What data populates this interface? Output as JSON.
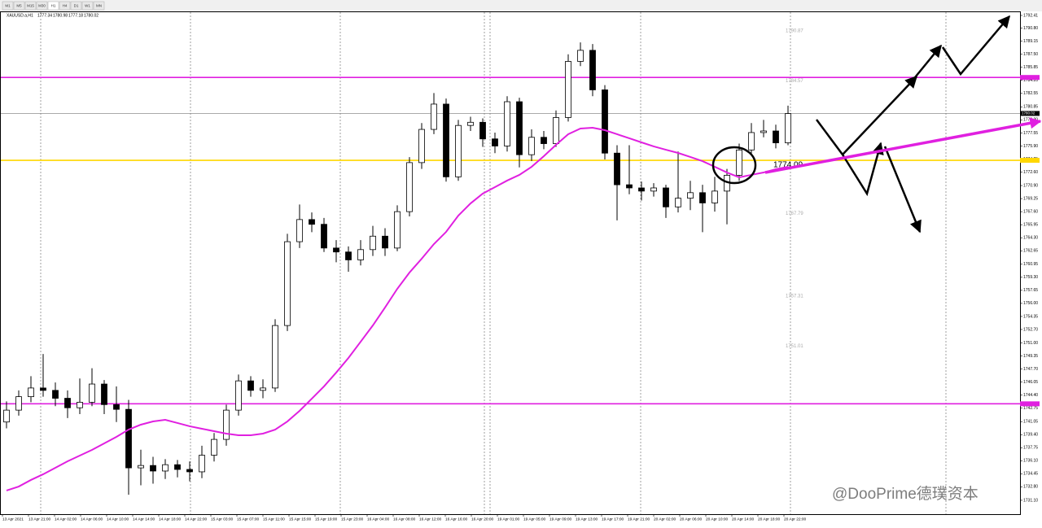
{
  "toolbar": [
    "M1",
    "M5",
    "M15",
    "M30",
    "H1",
    "H4",
    "D1",
    "W1",
    "MN"
  ],
  "chart_data": {
    "type": "candlestick",
    "symbol": "XAUUSD.a,H1",
    "quote": [
      1777.34,
      1780.98,
      1777.18,
      1780.02
    ],
    "up_color": "#ffffff",
    "down_color": "#000000",
    "open": [
      1741.0,
      1742.5,
      1744.2,
      1745.3,
      1745.0,
      1744.0,
      1742.8,
      1743.5,
      1745.8,
      1743.2,
      1742.6,
      1735.2,
      1735.5,
      1734.8,
      1735.6,
      1735.0,
      1734.7,
      1736.8,
      1738.8,
      1742.5,
      1746.2,
      1745.0,
      1745.3,
      1753.2,
      1763.8,
      1766.6,
      1766.0,
      1763.0,
      1762.5,
      1761.5,
      1762.8,
      1764.5,
      1763.0,
      1767.6,
      1773.8,
      1778.0,
      1781.2,
      1772.0,
      1778.5,
      1778.9,
      1776.8,
      1775.9,
      1781.5,
      1774.8,
      1777.0,
      1776.2,
      1779.5,
      1786.6,
      1788.0,
      1783.0,
      1775.0,
      1771.0,
      1770.6,
      1770.2,
      1770.6,
      1768.2,
      1769.3,
      1770.0,
      1768.7,
      1770.2,
      1772.2,
      1775.4,
      1777.6,
      1777.8,
      1776.3
    ],
    "high": [
      1743.6,
      1745.0,
      1746.8,
      1749.6,
      1746.0,
      1745.0,
      1746.5,
      1747.8,
      1746.3,
      1745.5,
      1743.8,
      1737.5,
      1736.6,
      1736.3,
      1736.2,
      1736.0,
      1738.0,
      1739.6,
      1743.2,
      1747.0,
      1746.8,
      1746.4,
      1754.0,
      1764.8,
      1768.5,
      1767.5,
      1766.8,
      1764.0,
      1763.2,
      1764.0,
      1765.8,
      1765.5,
      1768.4,
      1774.5,
      1778.8,
      1782.6,
      1781.9,
      1779.2,
      1779.6,
      1779.4,
      1777.6,
      1782.2,
      1782.0,
      1778.0,
      1777.8,
      1780.4,
      1787.5,
      1789.0,
      1788.8,
      1783.6,
      1776.0,
      1776.0,
      1771.4,
      1771.2,
      1771.0,
      1775.2,
      1771.5,
      1771.0,
      1772.0,
      1773.0,
      1776.2,
      1778.8,
      1779.2,
      1778.6,
      1781.0
    ],
    "low": [
      1740.2,
      1741.8,
      1743.5,
      1744.2,
      1743.0,
      1741.5,
      1742.0,
      1743.0,
      1742.0,
      1741.0,
      1731.8,
      1733.0,
      1733.2,
      1733.8,
      1734.0,
      1733.5,
      1733.9,
      1736.0,
      1738.0,
      1741.8,
      1744.2,
      1744.0,
      1744.8,
      1752.5,
      1763.0,
      1765.0,
      1762.5,
      1761.2,
      1760.0,
      1760.8,
      1762.0,
      1762.0,
      1762.6,
      1767.0,
      1773.0,
      1777.4,
      1771.4,
      1771.5,
      1777.8,
      1775.8,
      1775.0,
      1775.2,
      1773.2,
      1774.0,
      1775.5,
      1775.8,
      1779.0,
      1786.0,
      1782.2,
      1774.2,
      1766.5,
      1769.8,
      1769.0,
      1769.5,
      1766.8,
      1767.5,
      1767.8,
      1765.0,
      1767.6,
      1766.0,
      1771.5,
      1774.8,
      1777.0,
      1775.6,
      1776.0
    ],
    "close": [
      1742.5,
      1744.2,
      1745.3,
      1745.0,
      1744.0,
      1742.8,
      1743.5,
      1745.8,
      1743.2,
      1742.6,
      1735.2,
      1735.5,
      1734.8,
      1735.6,
      1735.0,
      1734.7,
      1736.8,
      1738.8,
      1742.5,
      1746.2,
      1745.0,
      1745.3,
      1753.2,
      1763.8,
      1766.6,
      1766.0,
      1763.0,
      1762.5,
      1761.5,
      1762.8,
      1764.5,
      1763.0,
      1767.6,
      1773.8,
      1778.0,
      1781.2,
      1772.0,
      1778.5,
      1778.9,
      1776.8,
      1775.9,
      1781.5,
      1774.8,
      1777.0,
      1776.2,
      1779.5,
      1786.6,
      1788.0,
      1783.0,
      1775.0,
      1771.0,
      1770.6,
      1770.2,
      1770.6,
      1768.2,
      1769.3,
      1770.0,
      1768.7,
      1770.2,
      1772.2,
      1775.4,
      1777.6,
      1777.8,
      1776.3,
      1780.0
    ],
    "ma": {
      "color": "#e020e0",
      "values": [
        1732.33,
        1732.84,
        1733.67,
        1734.39,
        1735.21,
        1736.03,
        1736.75,
        1737.47,
        1738.29,
        1739.12,
        1740.04,
        1740.66,
        1741.07,
        1741.28,
        1740.87,
        1740.46,
        1740.15,
        1739.84,
        1739.53,
        1739.32,
        1739.32,
        1739.53,
        1740.04,
        1741.07,
        1742.41,
        1743.95,
        1745.5,
        1747.25,
        1749.1,
        1751.15,
        1753.21,
        1755.48,
        1757.84,
        1759.9,
        1761.65,
        1763.5,
        1765.04,
        1767.1,
        1768.64,
        1769.88,
        1770.7,
        1771.53,
        1772.25,
        1773.27,
        1774.61,
        1776.05,
        1777.39,
        1778.11,
        1778.21,
        1777.9,
        1777.39,
        1776.88,
        1776.36,
        1775.85,
        1775.43,
        1775.02,
        1774.51,
        1773.99,
        1773.27,
        1772.55,
        1771.94,
        1772.25,
        1772.55,
        1772.97,
        1773.27
      ]
    },
    "levels": [
      {
        "value": 1784.57,
        "color": "#e020e0"
      },
      {
        "value": 1743.3,
        "color": "#e020e0"
      },
      {
        "value": 1774.09,
        "color": "#ffd700"
      }
    ],
    "level_labels": [
      1790.87,
      1784.57,
      1767.79,
      1757.31,
      1751.01
    ],
    "ylim": [
      1729.55,
      1792.82
    ],
    "yticks": [
      1792.41,
      {
        "value": 1790.8,
        "label": "1790.80"
      },
      1789.15,
      {
        "value": 1787.5,
        "label": "1787.50"
      },
      1785.85,
      {
        "value": 1784.2,
        "label": "1784.20"
      },
      1782.55,
      1780.85,
      {
        "value": 1779.2,
        "label": "1779.20"
      },
      1777.55,
      {
        "value": 1775.9,
        "label": "1775.90"
      },
      1774.25,
      {
        "value": 1772.6,
        "label": "1772.60"
      },
      {
        "value": 1770.9,
        "label": "1770.90"
      },
      1769.25,
      {
        "value": 1767.6,
        "label": "1767.60"
      },
      1765.95,
      {
        "value": 1764.3,
        "label": "1764.30"
      },
      1762.65,
      1760.95,
      {
        "value": 1759.3,
        "label": "1759.30"
      },
      1757.65,
      {
        "value": 1756.0,
        "label": "1756.00"
      },
      1754.35,
      {
        "value": 1752.7,
        "label": "1752.70"
      },
      {
        "value": 1751.0,
        "label": "1751.00"
      },
      1749.35,
      {
        "value": 1747.7,
        "label": "1747.70"
      },
      1746.05,
      {
        "value": 1744.4,
        "label": "1744.40"
      },
      1742.75,
      1741.05,
      {
        "value": 1739.4,
        "label": "1739.40"
      },
      1737.75,
      {
        "value": 1736.1,
        "label": "1736.10"
      },
      1734.45,
      {
        "value": 1732.8,
        "label": "1732.80"
      },
      {
        "value": 1731.1,
        "label": "1731.10"
      }
    ],
    "x_labels": [
      "13 Apr 2021",
      "13 Apr 21:00",
      "14 Apr 02:00",
      "14 Apr 06:00",
      "14 Apr 10:00",
      "14 Apr 14:00",
      "14 Apr 18:00",
      "14 Apr 22:00",
      "15 Apr 03:00",
      "15 Apr 07:00",
      "15 Apr 11:00",
      "15 Apr 15:00",
      "15 Apr 19:00",
      "15 Apr 23:00",
      "16 Apr 04:00",
      "16 Apr 08:00",
      "16 Apr 12:00",
      "16 Apr 16:00",
      "16 Apr 20:00",
      "19 Apr 01:00",
      "19 Apr 05:00",
      "19 Apr 09:00",
      "19 Apr 13:00",
      "19 Apr 17:00",
      "19 Apr 21:00",
      "20 Apr 02:00",
      "20 Apr 06:00",
      "20 Apr 10:00",
      "20 Apr 14:00",
      "20 Apr 18:00",
      "20 Apr 22:00"
    ],
    "watermark": "@DooPrime德璞资本"
  }
}
